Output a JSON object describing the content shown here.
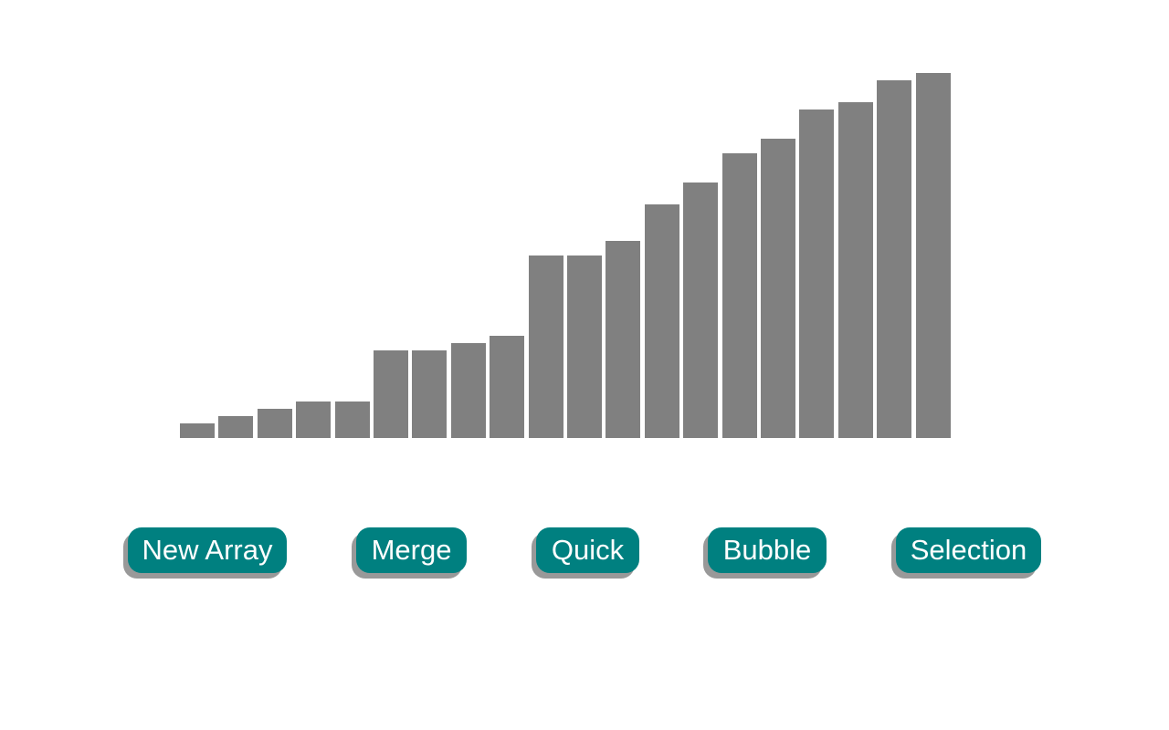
{
  "chart_data": {
    "type": "bar",
    "values": [
      4,
      6,
      8,
      10,
      10,
      24,
      24,
      26,
      28,
      50,
      50,
      54,
      64,
      70,
      78,
      82,
      90,
      92,
      98,
      100
    ],
    "ylim": [
      0,
      100
    ],
    "bar_color": "#808080"
  },
  "buttons": {
    "new_array": "New Array",
    "merge": "Merge",
    "quick": "Quick",
    "bubble": "Bubble",
    "selection": "Selection"
  },
  "colors": {
    "button_bg": "#008080",
    "button_shadow": "#999999",
    "button_text": "#ffffff",
    "background": "#ffffff"
  }
}
